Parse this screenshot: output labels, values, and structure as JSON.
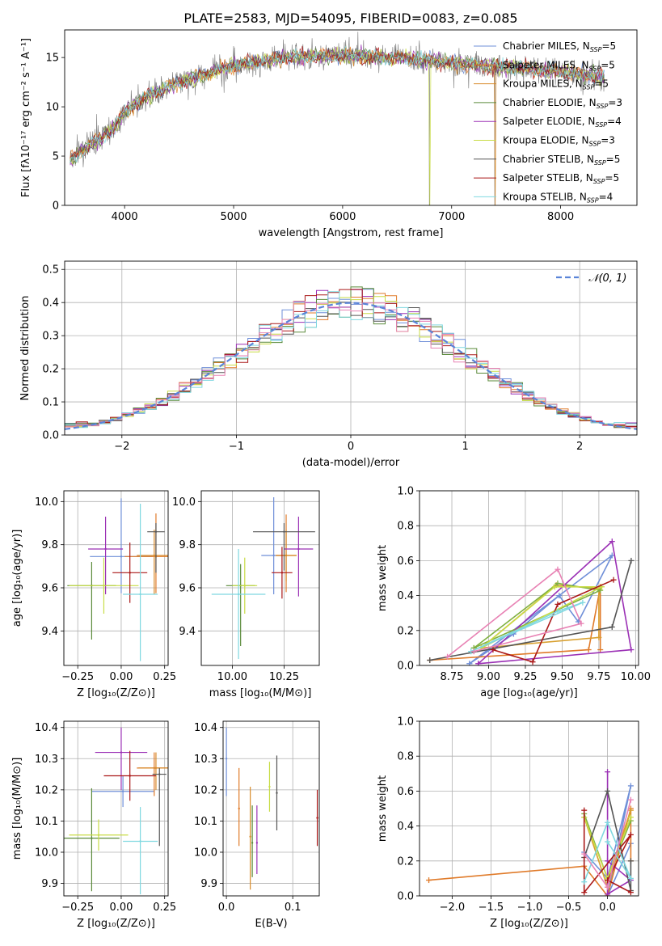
{
  "figure": {
    "title": "PLATE=2583, MJD=54095, FIBERID=0083, z=0.085"
  },
  "models": [
    {
      "name": "Chabrier MILES",
      "nssp": "5",
      "color": "#6f8fd8"
    },
    {
      "name": "Salpeter MILES",
      "nssp": "5",
      "color": "#e07b2a"
    },
    {
      "name": "Kroupa MILES",
      "nssp": "5",
      "color": "#d88a2a"
    },
    {
      "name": "Chabrier ELODIE",
      "nssp": "3",
      "color": "#5a8a3a"
    },
    {
      "name": "Salpeter ELODIE",
      "nssp": "4",
      "color": "#9b30b5"
    },
    {
      "name": "Kroupa ELODIE",
      "nssp": "3",
      "color": "#c8dc46"
    },
    {
      "name": "Chabrier STELIB",
      "nssp": "5",
      "color": "#555555"
    },
    {
      "name": "Salpeter STELIB",
      "nssp": "5",
      "color": "#aa1818"
    },
    {
      "name": "Kroupa STELIB",
      "nssp": "4",
      "color": "#7fd8e0"
    }
  ],
  "chart_data": [
    {
      "id": "spectrum",
      "type": "line",
      "xlabel": "wavelength [Angstrom, rest frame]",
      "ylabel": "Flux [fλ10⁻¹⁷ erg cm⁻² s⁻¹ A⁻¹]",
      "xlim": [
        3450,
        8700
      ],
      "ylim": [
        0,
        17.8
      ],
      "xticks": [
        4000,
        5000,
        6000,
        7000,
        8000
      ],
      "yticks": [
        0,
        5,
        10,
        15
      ],
      "grid": false,
      "legend": "upper-right",
      "continuum": [
        [
          3500,
          4.5
        ],
        [
          3600,
          5.5
        ],
        [
          3800,
          7
        ],
        [
          3900,
          7.8
        ],
        [
          4000,
          9.5
        ],
        [
          4200,
          11
        ],
        [
          4500,
          12.5
        ],
        [
          5000,
          14.2
        ],
        [
          5500,
          15
        ],
        [
          6000,
          15.2
        ],
        [
          6500,
          15
        ],
        [
          7000,
          14.5
        ],
        [
          7500,
          14
        ],
        [
          8000,
          13.6
        ],
        [
          8400,
          13
        ]
      ]
    },
    {
      "id": "residuals",
      "type": "line",
      "xlabel": "(data-model)/error",
      "ylabel": "Normed distribution",
      "xlim": [
        -2.5,
        2.5
      ],
      "ylim": [
        0,
        0.525
      ],
      "xticks": [
        -2,
        -1,
        0,
        1,
        2
      ],
      "yticks": [
        0.0,
        0.1,
        0.2,
        0.3,
        0.4,
        0.5
      ],
      "grid": true,
      "legend": "upper-right",
      "reference_label": "𝒩(0, 1)",
      "bin_width": 0.1
    },
    {
      "id": "age-vs-Z",
      "type": "scatter",
      "xlabel": "Z [log₁₀(Z/Z⊙)]",
      "ylabel": "age  [log₁₀(age/yr)]",
      "xlim": [
        -0.33,
        0.27
      ],
      "ylim": [
        9.24,
        10.05
      ],
      "xticks": [
        -0.25,
        0.0,
        0.25
      ],
      "yticks": [
        9.4,
        9.6,
        9.8,
        10.0
      ],
      "grid": true,
      "points": [
        {
          "x": 0.0,
          "y": 9.745,
          "xerr": 0.18,
          "yerr": [
            0.17,
            0.27
          ]
        },
        {
          "x": 0.2,
          "y": 9.745,
          "xerr": 0.18,
          "yerr": [
            0.17,
            0.2
          ]
        },
        {
          "x": 0.19,
          "y": 9.75,
          "xerr": 0.1,
          "yerr": [
            0.18,
            0.12
          ]
        },
        {
          "x": -0.17,
          "y": 9.61,
          "xerr": 0.14,
          "yerr": [
            0.25,
            0.11
          ]
        },
        {
          "x": -0.09,
          "y": 9.78,
          "xerr": 0.1,
          "yerr": [
            0.21,
            0.15
          ]
        },
        {
          "x": -0.1,
          "y": 9.61,
          "xerr": 0.2,
          "yerr": [
            0.13,
            0.13
          ]
        },
        {
          "x": 0.2,
          "y": 9.86,
          "xerr": 0.05,
          "yerr": [
            0.19,
            0.04
          ]
        },
        {
          "x": 0.05,
          "y": 9.67,
          "xerr": 0.1,
          "yerr": [
            0.14,
            0.14
          ]
        },
        {
          "x": 0.11,
          "y": 9.57,
          "xerr": 0.1,
          "yerr": [
            0.31,
            0.42
          ]
        }
      ]
    },
    {
      "id": "age-vs-mass",
      "type": "scatter",
      "xlabel": "mass [log₁₀(M/M⊙)]",
      "ylabel": "",
      "xlim": [
        9.85,
        10.42
      ],
      "ylim": [
        9.24,
        10.05
      ],
      "xticks": [
        10.0,
        10.25
      ],
      "yticks": [
        9.4,
        9.6,
        9.8,
        10.0
      ],
      "grid": true,
      "points": [
        {
          "x": 10.2,
          "y": 9.75,
          "xerr": 0.06,
          "yerr": [
            0.18,
            0.27
          ]
        },
        {
          "x": 10.26,
          "y": 9.75,
          "xerr": 0.05,
          "yerr": [
            0.17,
            0.19
          ]
        },
        {
          "x": 10.26,
          "y": 9.75,
          "xerr": 0.05,
          "yerr": [
            0.12,
            0.12
          ]
        },
        {
          "x": 10.04,
          "y": 9.61,
          "xerr": 0.07,
          "yerr": [
            0.28,
            0.1
          ]
        },
        {
          "x": 10.32,
          "y": 9.78,
          "xerr": 0.07,
          "yerr": [
            0.22,
            0.15
          ]
        },
        {
          "x": 10.06,
          "y": 9.61,
          "xerr": 0.06,
          "yerr": [
            0.13,
            0.13
          ]
        },
        {
          "x": 10.25,
          "y": 9.86,
          "xerr": 0.15,
          "yerr": [
            0.18,
            0.04
          ]
        },
        {
          "x": 10.24,
          "y": 9.67,
          "xerr": 0.05,
          "yerr": [
            0.12,
            0.12
          ]
        },
        {
          "x": 10.03,
          "y": 9.57,
          "xerr": 0.13,
          "yerr": [
            0.3,
            0.21
          ]
        }
      ]
    },
    {
      "id": "weight-vs-age",
      "type": "line",
      "xlabel": "age  [log₁₀(age/yr)]",
      "ylabel": "mass weight",
      "xlim": [
        8.53,
        10.02
      ],
      "ylim": [
        0,
        1
      ],
      "xticks": [
        8.75,
        9.0,
        9.25,
        9.5,
        9.75,
        10.0
      ],
      "yticks": [
        0.0,
        0.2,
        0.4,
        0.6,
        0.8,
        1.0
      ],
      "grid": true,
      "series": [
        {
          "x": [
            8.87,
            9.17,
            9.48,
            9.61,
            9.84,
            8.87
          ],
          "y": [
            0.01,
            0.18,
            0.4,
            0.25,
            0.63,
            0.01
          ]
        },
        {
          "x": [
            8.6,
            9.68,
            9.76,
            9.76
          ],
          "y": [
            0.03,
            0.09,
            0.45,
            0.09
          ]
        },
        {
          "x": [
            8.95,
            9.46,
            9.75,
            9.75,
            8.95
          ],
          "y": [
            0.1,
            0.46,
            0.44,
            0.16,
            0.1
          ]
        },
        {
          "x": [
            8.9,
            9.47,
            9.76,
            8.9
          ],
          "y": [
            0.1,
            0.47,
            0.43,
            0.1
          ]
        },
        {
          "x": [
            8.93,
            9.84,
            9.97,
            8.93
          ],
          "y": [
            0.01,
            0.71,
            0.09,
            0.01
          ]
        },
        {
          "x": [
            8.95,
            9.45,
            9.77,
            8.95
          ],
          "y": [
            0.1,
            0.45,
            0.45,
            0.1
          ]
        },
        {
          "x": [
            8.6,
            9.84,
            9.97
          ],
          "y": [
            0.03,
            0.22,
            0.6
          ]
        },
        {
          "x": [
            9.03,
            9.3,
            9.47,
            9.85
          ],
          "y": [
            0.09,
            0.02,
            0.35,
            0.49
          ]
        },
        {
          "x": [
            8.88,
            9.47,
            9.64,
            8.88
          ],
          "y": [
            0.08,
            0.31,
            0.36,
            0.08
          ]
        },
        {
          "x": [
            8.72,
            9.47,
            9.63,
            8.9
          ],
          "y": [
            0.05,
            0.55,
            0.24,
            0.08
          ]
        }
      ]
    },
    {
      "id": "mass-vs-Z",
      "type": "scatter",
      "xlabel": "Z [log₁₀(Z/Z⊙)]",
      "ylabel": "mass [log₁₀(M/M⊙)]",
      "xlim": [
        -0.33,
        0.27
      ],
      "ylim": [
        9.86,
        10.42
      ],
      "xticks": [
        -0.25,
        0.0,
        0.25
      ],
      "yticks": [
        9.9,
        10.0,
        10.1,
        10.2,
        10.3,
        10.4
      ],
      "grid": true,
      "points": [
        {
          "x": 0.01,
          "y": 10.195,
          "xerr": 0.18,
          "yerr": [
            0.05,
            0.05
          ]
        },
        {
          "x": 0.19,
          "y": 10.27,
          "xerr": 0.1,
          "yerr": [
            0.09,
            0.05
          ]
        },
        {
          "x": 0.2,
          "y": 10.27,
          "xerr": 0.1,
          "yerr": [
            0.07,
            0.05
          ]
        },
        {
          "x": -0.17,
          "y": 10.045,
          "xerr": 0.16,
          "yerr": [
            0.17,
            0.16
          ]
        },
        {
          "x": 0.0,
          "y": 10.32,
          "xerr": 0.15,
          "yerr": [
            0.12,
            0.08
          ]
        },
        {
          "x": -0.13,
          "y": 10.055,
          "xerr": 0.17,
          "yerr": [
            0.05,
            0.05
          ]
        },
        {
          "x": 0.22,
          "y": 10.25,
          "xerr": 0.04,
          "yerr": [
            0.23,
            0.02
          ]
        },
        {
          "x": 0.05,
          "y": 10.245,
          "xerr": 0.15,
          "yerr": [
            0.08,
            0.08
          ]
        },
        {
          "x": 0.11,
          "y": 10.035,
          "xerr": 0.1,
          "yerr": [
            0.17,
            0.11
          ]
        }
      ]
    },
    {
      "id": "mass-vs-EBV",
      "type": "scatter",
      "xlabel": "E(B-V)",
      "ylabel": "",
      "xlim": [
        -0.005,
        0.14
      ],
      "ylim": [
        9.86,
        10.42
      ],
      "xticks": [
        0.0,
        0.1
      ],
      "yticks": [
        9.9,
        10.0,
        10.1,
        10.2,
        10.3,
        10.4
      ],
      "grid": true,
      "points": [
        {
          "x": 0.0,
          "y": 10.3,
          "xerr": 0,
          "yerr": [
            0.12,
            0.1
          ]
        },
        {
          "x": 0.019,
          "y": 10.14,
          "xerr": 0,
          "yerr": [
            0.12,
            0.13
          ]
        },
        {
          "x": 0.036,
          "y": 10.05,
          "xerr": 0,
          "yerr": [
            0.17,
            0.16
          ]
        },
        {
          "x": 0.039,
          "y": 10.03,
          "xerr": 0,
          "yerr": [
            0.11,
            0.12
          ]
        },
        {
          "x": 0.046,
          "y": 10.03,
          "xerr": 0,
          "yerr": [
            0.1,
            0.12
          ]
        },
        {
          "x": 0.065,
          "y": 10.21,
          "xerr": 0,
          "yerr": [
            0.08,
            0.08
          ]
        },
        {
          "x": 0.076,
          "y": 10.19,
          "xerr": 0,
          "yerr": [
            0.12,
            0.12
          ]
        },
        {
          "x": 0.137,
          "y": 10.11,
          "xerr": 0,
          "yerr": [
            0.09,
            0.09
          ]
        }
      ]
    },
    {
      "id": "weight-vs-Z",
      "type": "line",
      "xlabel": "Z [log₁₀(Z/Z⊙)]",
      "ylabel": "mass weight",
      "xlim": [
        -2.42,
        0.4
      ],
      "ylim": [
        0,
        1
      ],
      "xticks": [
        -2.0,
        -1.5,
        -1.0,
        -0.5,
        0.0
      ],
      "yticks": [
        0.0,
        0.2,
        0.4,
        0.6,
        0.8,
        1.0
      ],
      "grid": true,
      "series": [
        {
          "x": [
            -0.3,
            0.0,
            0.3,
            0.0,
            0.3
          ],
          "y": [
            0.25,
            0.1,
            0.63,
            0.0,
            0.3
          ]
        },
        {
          "x": [
            -2.3,
            -0.3,
            0.0,
            0.3,
            0.3
          ],
          "y": [
            0.09,
            0.17,
            0.0,
            0.5,
            0.2
          ]
        },
        {
          "x": [
            -0.3,
            0.0,
            0.3,
            0.0
          ],
          "y": [
            0.45,
            0.05,
            0.49,
            0.1
          ]
        },
        {
          "x": [
            -0.3,
            0.0,
            0.3
          ],
          "y": [
            0.47,
            0.1,
            0.43
          ]
        },
        {
          "x": [
            0.0,
            0.0,
            0.3,
            0.0
          ],
          "y": [
            0.71,
            0.01,
            0.09,
            0.2
          ]
        },
        {
          "x": [
            -0.3,
            0.0,
            0.3
          ],
          "y": [
            0.45,
            0.1,
            0.45
          ]
        },
        {
          "x": [
            -0.3,
            0.0,
            0.3,
            0.3
          ],
          "y": [
            0.22,
            0.6,
            0.03,
            0.2
          ]
        },
        {
          "x": [
            -0.3,
            -0.3,
            0.3,
            0.0,
            0.3
          ],
          "y": [
            0.49,
            0.02,
            0.35,
            0.09,
            0.02
          ]
        },
        {
          "x": [
            -0.3,
            0.0,
            0.3,
            0.0
          ],
          "y": [
            0.08,
            0.42,
            0.1,
            0.31
          ]
        },
        {
          "x": [
            -0.3,
            0.0,
            0.3
          ],
          "y": [
            0.24,
            0.05,
            0.55
          ]
        }
      ]
    }
  ]
}
